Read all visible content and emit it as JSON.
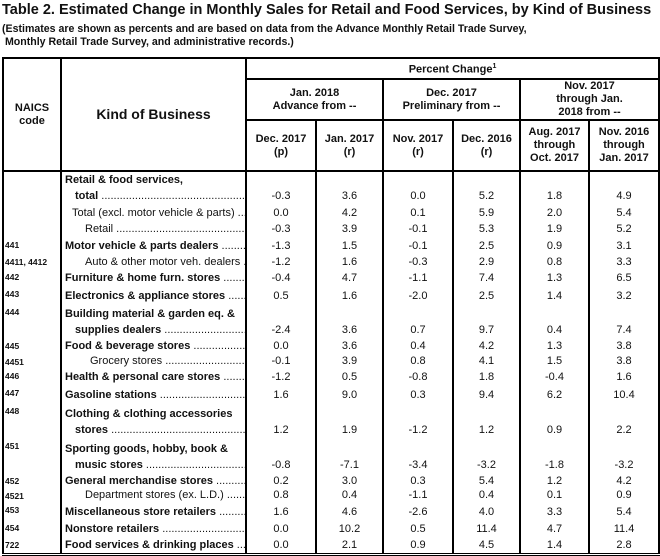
{
  "title": "Table 2.  Estimated Change in Monthly Sales for Retail and Food Services, by Kind of Business",
  "note": "(Estimates are shown as percents and are based on data from the Advance Monthly Retail Trade Survey,\n Monthly Retail Trade Survey, and administrative records.)",
  "header": {
    "naics": "NAICS code",
    "kind": "Kind of Business",
    "percent_change": "Percent Change",
    "footnote_mark": "1",
    "groups": [
      "Jan. 2018 Advance from --",
      "Dec. 2017 Preliminary from --",
      "Nov. 2017 through Jan. 2018 from --"
    ],
    "cols": [
      [
        "Dec. 2017",
        "(p)"
      ],
      [
        "Jan. 2017",
        "(r)"
      ],
      [
        "Nov. 2017",
        "(r)"
      ],
      [
        "Dec. 2016",
        "(r)"
      ],
      [
        "Aug. 2017",
        "through",
        "Oct. 2017"
      ],
      [
        "Nov. 2016",
        "through",
        "Jan. 2017"
      ]
    ]
  },
  "rows": [
    {
      "code": "",
      "lines": [
        "Retail & food services,",
        "total"
      ],
      "bold": true,
      "values": [
        "-0.3",
        "3.6",
        "0.0",
        "5.2",
        "1.8",
        "4.9"
      ]
    },
    {
      "code": "",
      "lines": [
        "Total (excl. motor vehicle & parts)"
      ],
      "bold": false,
      "values": [
        "0.0",
        "4.2",
        "0.1",
        "5.9",
        "2.0",
        "5.4"
      ]
    },
    {
      "code": "",
      "lines": [
        "Retail"
      ],
      "bold": false,
      "values": [
        "-0.3",
        "3.9",
        "-0.1",
        "5.3",
        "1.9",
        "5.2"
      ]
    },
    {
      "code": "441",
      "lines": [
        "Motor vehicle & parts dealers"
      ],
      "bold": true,
      "values": [
        "-1.3",
        "1.5",
        "-0.1",
        "2.5",
        "0.9",
        "3.1"
      ]
    },
    {
      "code": "4411, 4412",
      "lines": [
        "Auto & other motor veh. dealers"
      ],
      "bold": false,
      "values": [
        "-1.2",
        "1.6",
        "-0.3",
        "2.9",
        "0.8",
        "3.3"
      ]
    },
    {
      "code": "442",
      "lines": [
        "Furniture & home furn. stores"
      ],
      "bold": true,
      "values": [
        "-0.4",
        "4.7",
        "-1.1",
        "7.4",
        "1.3",
        "6.5"
      ]
    },
    {
      "code": "443",
      "lines": [
        "Electronics & appliance stores"
      ],
      "bold": true,
      "values": [
        "0.5",
        "1.6",
        "-2.0",
        "2.5",
        "1.4",
        "3.2"
      ]
    },
    {
      "code": "444",
      "lines": [
        "Building material & garden eq. &",
        "supplies dealers"
      ],
      "bold": true,
      "values": [
        "-2.4",
        "3.6",
        "0.7",
        "9.7",
        "0.4",
        "7.4"
      ]
    },
    {
      "code": "445",
      "lines": [
        "Food & beverage stores"
      ],
      "bold": true,
      "values": [
        "0.0",
        "3.6",
        "0.4",
        "4.2",
        "1.3",
        "3.8"
      ]
    },
    {
      "code": "4451",
      "lines": [
        "Grocery stores"
      ],
      "bold": false,
      "values": [
        "-0.1",
        "3.9",
        "0.8",
        "4.1",
        "1.5",
        "3.8"
      ]
    },
    {
      "code": "446",
      "lines": [
        "Health & personal care stores"
      ],
      "bold": true,
      "values": [
        "-1.2",
        "0.5",
        "-0.8",
        "1.8",
        "-0.4",
        "1.6"
      ]
    },
    {
      "code": "447",
      "lines": [
        "Gasoline stations"
      ],
      "bold": true,
      "values": [
        "1.6",
        "9.0",
        "0.3",
        "9.4",
        "6.2",
        "10.4"
      ]
    },
    {
      "code": "448",
      "lines": [
        "Clothing & clothing accessories",
        "stores"
      ],
      "bold": true,
      "values": [
        "1.2",
        "1.9",
        "-1.2",
        "1.2",
        "0.9",
        "2.2"
      ]
    },
    {
      "code": "451",
      "lines": [
        "Sporting goods, hobby, book &",
        "music stores"
      ],
      "bold": true,
      "values": [
        "-0.8",
        "-7.1",
        "-3.4",
        "-3.2",
        "-1.8",
        "-3.2"
      ]
    },
    {
      "code": "452",
      "lines": [
        "General merchandise stores"
      ],
      "bold": true,
      "values": [
        "0.2",
        "3.0",
        "0.3",
        "5.4",
        "1.2",
        "4.2"
      ]
    },
    {
      "code": "4521",
      "lines": [
        "Department stores (ex. L.D.)"
      ],
      "bold": false,
      "values": [
        "0.8",
        "0.4",
        "-1.1",
        "0.4",
        "0.1",
        "0.9"
      ]
    },
    {
      "code": "453",
      "lines": [
        "Miscellaneous store retailers"
      ],
      "bold": true,
      "values": [
        "1.6",
        "4.6",
        "-2.6",
        "4.0",
        "3.3",
        "5.4"
      ]
    },
    {
      "code": "454",
      "lines": [
        "Nonstore retailers"
      ],
      "bold": true,
      "values": [
        "0.0",
        "10.2",
        "0.5",
        "11.4",
        "4.7",
        "11.4"
      ]
    },
    {
      "code": "722",
      "lines": [
        "Food services & drinking places"
      ],
      "bold": true,
      "values": [
        "0.0",
        "2.1",
        "0.9",
        "4.5",
        "1.4",
        "2.8"
      ]
    }
  ]
}
